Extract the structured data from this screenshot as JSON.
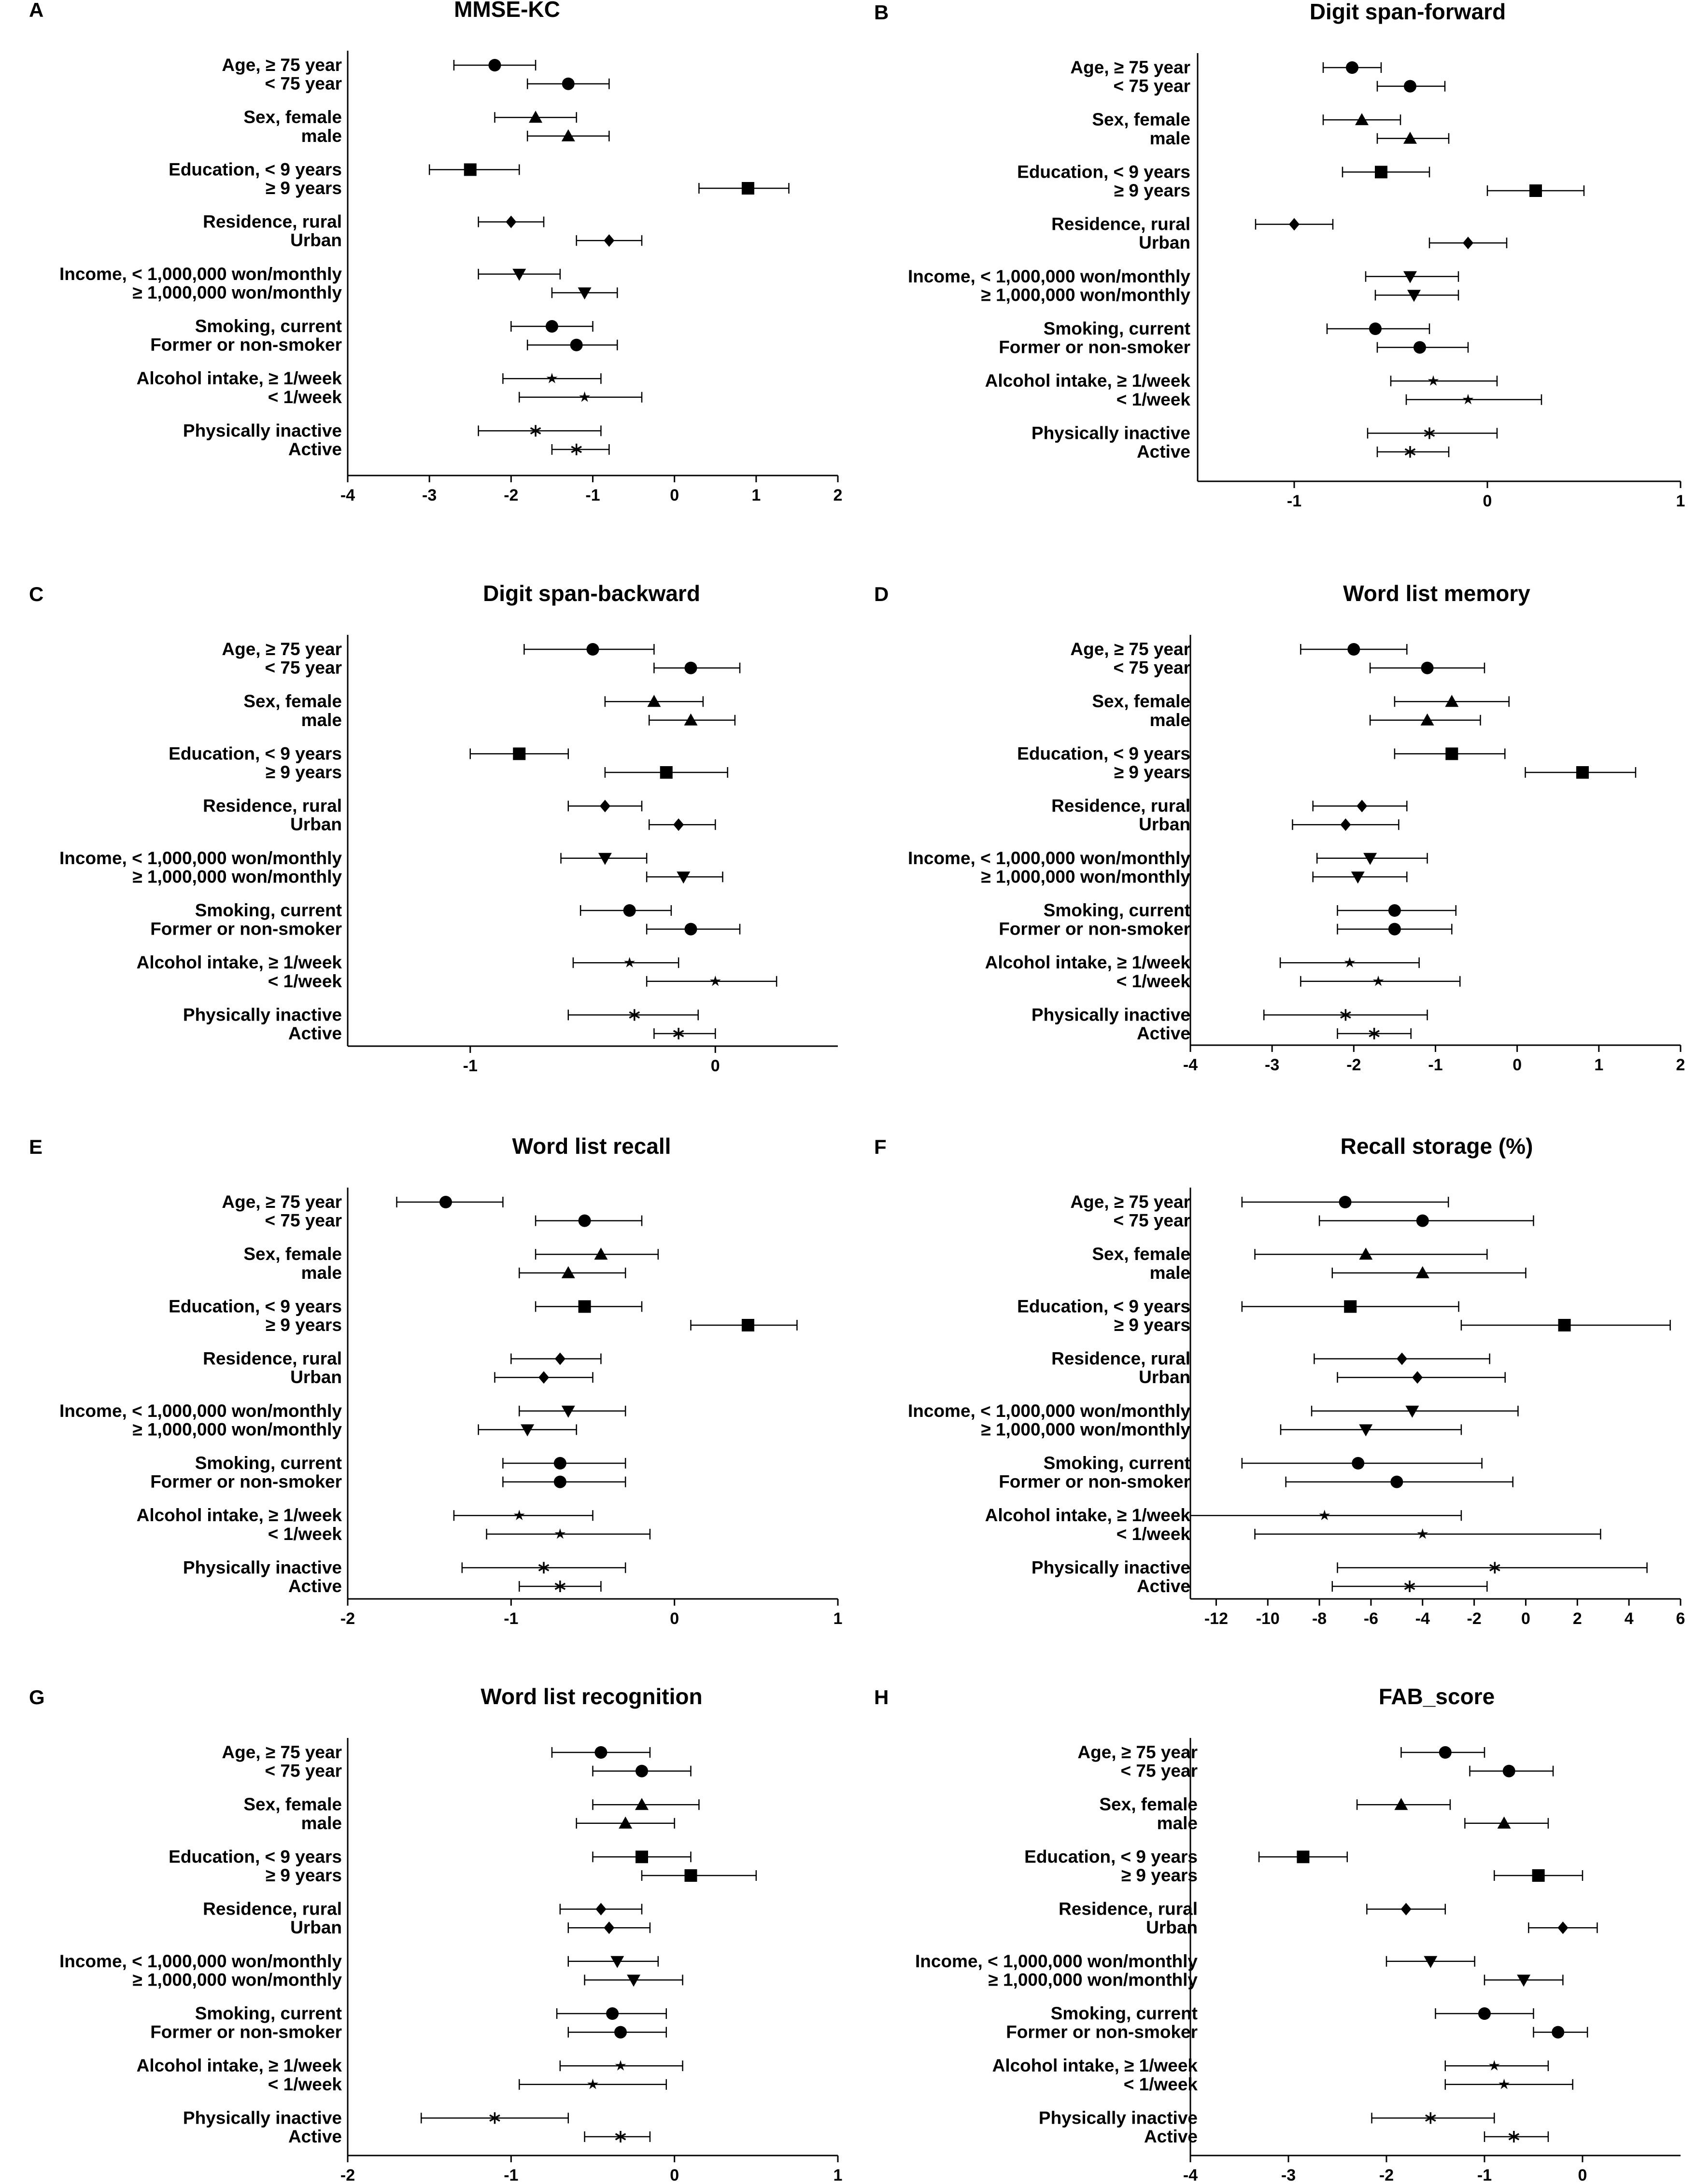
{
  "figure": {
    "row_labels": [
      "Age, ≥ 75 year",
      "< 75 year",
      "Sex, female",
      "male",
      "Education, < 9 years",
      "≥ 9 years",
      "Residence, rural",
      "Urban",
      "Income, < 1,000,000 won/monthly",
      "≥ 1,000,000 won/monthly",
      "Smoking, current",
      "Former or non-smoker",
      "Alcohol intake, ≥ 1/week",
      "< 1/week",
      "Physically inactive",
      "Active"
    ],
    "markers": [
      "circle",
      "circle",
      "triangle",
      "triangle",
      "square",
      "square",
      "diamond",
      "diamond",
      "triangle-down",
      "triangle-down",
      "circle",
      "circle",
      "star",
      "star",
      "asterisk",
      "asterisk"
    ]
  },
  "chart_data": [
    {
      "type": "forest",
      "panel": "A",
      "title": "MMSE-KC",
      "xlim": [
        -4,
        2
      ],
      "xticks": [
        -4,
        -3,
        -2,
        -1,
        0,
        1,
        2
      ],
      "estimates": [
        -2.2,
        -1.3,
        -1.7,
        -1.3,
        -2.5,
        0.9,
        -2.0,
        -0.8,
        -1.9,
        -1.1,
        -1.5,
        -1.2,
        -1.5,
        -1.1,
        -1.7,
        -1.2
      ],
      "ci_low": [
        -2.7,
        -1.8,
        -2.2,
        -1.8,
        -3.0,
        0.3,
        -2.4,
        -1.2,
        -2.4,
        -1.5,
        -2.0,
        -1.8,
        -2.1,
        -1.9,
        -2.4,
        -1.5
      ],
      "ci_high": [
        -1.7,
        -0.8,
        -1.2,
        -0.8,
        -1.9,
        1.4,
        -1.6,
        -0.4,
        -1.4,
        -0.7,
        -1.0,
        -0.7,
        -0.9,
        -0.4,
        -0.9,
        -0.8
      ]
    },
    {
      "type": "forest",
      "panel": "B",
      "title": "Digit span-forward",
      "xlim": [
        -1.5,
        1
      ],
      "xticks": [
        -1,
        0,
        1
      ],
      "estimates": [
        -0.7,
        -0.4,
        -0.65,
        -0.4,
        -0.55,
        0.25,
        -1.0,
        -0.1,
        -0.4,
        -0.38,
        -0.58,
        -0.35,
        -0.28,
        -0.1,
        -0.3,
        -0.4
      ],
      "ci_low": [
        -0.85,
        -0.57,
        -0.85,
        -0.57,
        -0.75,
        0.0,
        -1.2,
        -0.3,
        -0.63,
        -0.58,
        -0.83,
        -0.57,
        -0.5,
        -0.42,
        -0.62,
        -0.57
      ],
      "ci_high": [
        -0.55,
        -0.22,
        -0.45,
        -0.2,
        -0.3,
        0.5,
        -0.8,
        0.1,
        -0.15,
        -0.15,
        -0.3,
        -0.1,
        0.05,
        0.28,
        0.05,
        -0.2
      ]
    },
    {
      "type": "forest",
      "panel": "C",
      "title": "Digit span-backward",
      "xlim": [
        -1.5,
        0.5
      ],
      "xticks": [
        -1,
        0
      ],
      "estimates": [
        -0.5,
        -0.1,
        -0.25,
        -0.1,
        -0.8,
        -0.2,
        -0.45,
        -0.15,
        -0.45,
        -0.13,
        -0.35,
        -0.1,
        -0.35,
        0.0,
        -0.33,
        -0.15
      ],
      "ci_low": [
        -0.78,
        -0.25,
        -0.45,
        -0.27,
        -1.0,
        -0.45,
        -0.6,
        -0.27,
        -0.63,
        -0.28,
        -0.55,
        -0.28,
        -0.58,
        -0.28,
        -0.6,
        -0.25
      ],
      "ci_high": [
        -0.25,
        0.1,
        -0.05,
        0.08,
        -0.6,
        0.05,
        -0.3,
        0.0,
        -0.28,
        0.03,
        -0.18,
        0.1,
        -0.15,
        0.25,
        -0.07,
        0.0
      ]
    },
    {
      "type": "forest",
      "panel": "D",
      "title": "Word list memory",
      "xlim": [
        -4,
        2
      ],
      "xticks": [
        -4,
        -3,
        -2,
        -1,
        0,
        1,
        2
      ],
      "estimates": [
        -2.0,
        -1.1,
        -0.8,
        -1.1,
        -0.8,
        0.8,
        -1.9,
        -2.1,
        -1.8,
        -1.95,
        -1.5,
        -1.5,
        -2.05,
        -1.7,
        -2.1,
        -1.75
      ],
      "ci_low": [
        -2.65,
        -1.8,
        -1.5,
        -1.8,
        -1.5,
        0.1,
        -2.5,
        -2.75,
        -2.45,
        -2.5,
        -2.2,
        -2.2,
        -2.9,
        -2.65,
        -3.1,
        -2.2
      ],
      "ci_high": [
        -1.35,
        -0.4,
        -0.1,
        -0.45,
        -0.15,
        1.45,
        -1.35,
        -1.45,
        -1.1,
        -1.35,
        -0.75,
        -0.8,
        -1.2,
        -0.7,
        -1.1,
        -1.3
      ]
    },
    {
      "type": "forest",
      "panel": "E",
      "title": "Word list recall",
      "xlim": [
        -2,
        1
      ],
      "xticks": [
        -2,
        -1,
        0,
        1
      ],
      "estimates": [
        -1.4,
        -0.55,
        -0.45,
        -0.65,
        -0.55,
        0.45,
        -0.7,
        -0.8,
        -0.65,
        -0.9,
        -0.7,
        -0.7,
        -0.95,
        -0.7,
        -0.8,
        -0.7
      ],
      "ci_low": [
        -1.7,
        -0.85,
        -0.85,
        -0.95,
        -0.85,
        0.1,
        -1.0,
        -1.1,
        -0.95,
        -1.2,
        -1.05,
        -1.05,
        -1.35,
        -1.15,
        -1.3,
        -0.95
      ],
      "ci_high": [
        -1.05,
        -0.2,
        -0.1,
        -0.3,
        -0.2,
        0.75,
        -0.45,
        -0.5,
        -0.3,
        -0.6,
        -0.3,
        -0.3,
        -0.5,
        -0.15,
        -0.3,
        -0.45
      ]
    },
    {
      "type": "forest",
      "panel": "F",
      "title": "Recall storage (%)",
      "xlim": [
        -13,
        6
      ],
      "xticks": [
        -12,
        -10,
        -8,
        -6,
        -4,
        -2,
        0,
        2,
        4,
        6
      ],
      "estimates": [
        -7.0,
        -4.0,
        -6.2,
        -4.0,
        -6.8,
        1.5,
        -4.8,
        -4.2,
        -4.4,
        -6.2,
        -6.5,
        -5.0,
        -7.8,
        -4.0,
        -1.2,
        -4.5
      ],
      "ci_low": [
        -11.0,
        -8.0,
        -10.5,
        -7.5,
        -11.0,
        -2.5,
        -8.2,
        -7.3,
        -8.3,
        -9.5,
        -11.0,
        -9.3,
        -13.0,
        -10.5,
        -7.3,
        -7.5
      ],
      "ci_high": [
        -3.0,
        0.3,
        -1.5,
        0.0,
        -2.6,
        5.6,
        -1.4,
        -0.8,
        -0.3,
        -2.5,
        -1.7,
        -0.5,
        -2.5,
        2.9,
        4.7,
        -1.5
      ]
    },
    {
      "type": "forest",
      "panel": "G",
      "title": "Word list recognition",
      "xlim": [
        -2,
        1
      ],
      "xticks": [
        -2,
        -1,
        0,
        1
      ],
      "estimates": [
        -0.45,
        -0.2,
        -0.2,
        -0.3,
        -0.2,
        0.1,
        -0.45,
        -0.4,
        -0.35,
        -0.25,
        -0.38,
        -0.33,
        -0.33,
        -0.5,
        -1.1,
        -0.33
      ],
      "ci_low": [
        -0.75,
        -0.5,
        -0.5,
        -0.6,
        -0.5,
        -0.2,
        -0.7,
        -0.65,
        -0.65,
        -0.55,
        -0.72,
        -0.65,
        -0.7,
        -0.95,
        -1.55,
        -0.55
      ],
      "ci_high": [
        -0.15,
        0.1,
        0.15,
        0.0,
        0.1,
        0.5,
        -0.2,
        -0.15,
        -0.1,
        0.05,
        -0.05,
        -0.05,
        0.05,
        -0.05,
        -0.65,
        -0.15
      ]
    },
    {
      "type": "forest",
      "panel": "H",
      "title": "FAB_score",
      "xlim": [
        -4,
        1
      ],
      "xticks": [
        -4,
        -3,
        -2,
        -1,
        0
      ],
      "estimates": [
        -1.4,
        -0.75,
        -1.85,
        -0.8,
        -2.85,
        -0.45,
        -1.8,
        -0.2,
        -1.55,
        -0.6,
        -1.0,
        -0.25,
        -0.9,
        -0.8,
        -1.55,
        -0.7
      ],
      "ci_low": [
        -1.85,
        -1.15,
        -2.3,
        -1.2,
        -3.3,
        -0.9,
        -2.2,
        -0.55,
        -2.0,
        -1.0,
        -1.5,
        -0.5,
        -1.4,
        -1.4,
        -2.15,
        -1.0
      ],
      "ci_high": [
        -1.0,
        -0.3,
        -1.35,
        -0.35,
        -2.4,
        0.0,
        -1.4,
        0.15,
        -1.1,
        -0.2,
        -0.5,
        0.05,
        -0.35,
        -0.1,
        -0.9,
        -0.35
      ]
    }
  ]
}
